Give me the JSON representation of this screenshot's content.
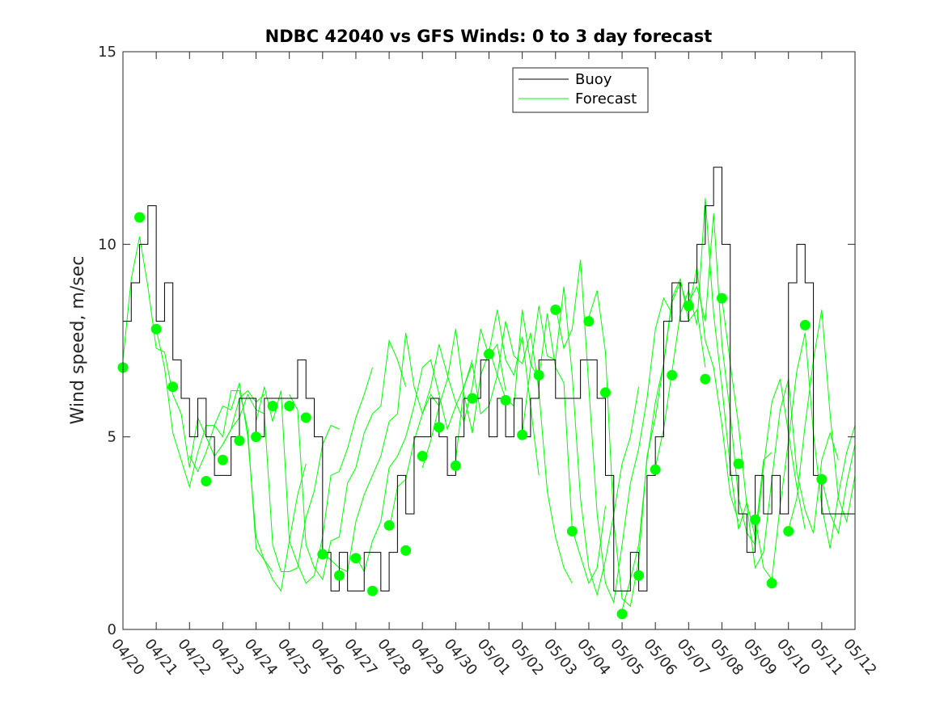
{
  "chart_data": {
    "type": "line",
    "title": "NDBC 42040 vs GFS Winds: 0 to 3 day forecast",
    "xlabel": "",
    "ylabel": "Wind speed, m/sec",
    "xlim": [
      "04/20",
      "05/12"
    ],
    "ylim": [
      0,
      15
    ],
    "x_ticks": [
      "04/20",
      "04/21",
      "04/22",
      "04/23",
      "04/24",
      "04/25",
      "04/26",
      "04/27",
      "04/28",
      "04/29",
      "04/30",
      "05/01",
      "05/02",
      "05/03",
      "05/04",
      "05/05",
      "05/06",
      "05/07",
      "05/08",
      "05/09",
      "05/10",
      "05/11",
      "05/12"
    ],
    "y_ticks": [
      0,
      5,
      10,
      15
    ],
    "legend": {
      "position": "top-right",
      "entries": [
        "Buoy",
        "Forecast"
      ]
    },
    "colors": {
      "buoy": "#000000",
      "forecast": "#00ff00",
      "axes": "#262626"
    },
    "grid": false,
    "series": [
      {
        "name": "Buoy",
        "style": "stairs",
        "x_days": [
          0,
          0.25,
          0.5,
          0.75,
          1,
          1.25,
          1.5,
          1.75,
          2,
          2.25,
          2.5,
          2.75,
          3,
          3.25,
          3.5,
          3.75,
          4,
          4.25,
          4.5,
          4.75,
          5,
          5.25,
          5.5,
          5.75,
          6,
          6.25,
          6.5,
          6.75,
          7,
          7.25,
          7.5,
          7.75,
          8,
          8.25,
          8.5,
          8.75,
          9,
          9.25,
          9.5,
          9.75,
          10,
          10.25,
          10.5,
          10.75,
          11,
          11.25,
          11.5,
          11.75,
          12,
          12.25,
          12.5,
          12.75,
          13,
          13.25,
          13.5,
          13.75,
          14,
          14.25,
          14.5,
          14.75,
          15,
          15.25,
          15.5,
          15.75,
          16,
          16.25,
          16.5,
          16.75,
          17,
          17.25,
          17.5,
          17.75,
          18,
          18.25,
          18.5,
          18.75,
          19,
          19.25,
          19.5,
          19.75,
          20,
          20.25,
          20.5,
          20.75,
          21,
          21.25,
          21.5,
          21.75,
          22
        ],
        "values": [
          8,
          9,
          10,
          11,
          8,
          9,
          7,
          6,
          5,
          6,
          5,
          4,
          4,
          5,
          6,
          6,
          5,
          6,
          6,
          6,
          6,
          7,
          6,
          5,
          2,
          1,
          2,
          1,
          1,
          2,
          2,
          1,
          2,
          4,
          3,
          5,
          5,
          6,
          5,
          4,
          5,
          6,
          6,
          7,
          5,
          6,
          5,
          6,
          5,
          6,
          7,
          7,
          6,
          6,
          6,
          7,
          7,
          6,
          4,
          1,
          1,
          2,
          1,
          4,
          5,
          8,
          9,
          8,
          9,
          10,
          11,
          12,
          10,
          4,
          3,
          2,
          4,
          3,
          4,
          3,
          9,
          10,
          9,
          4,
          3,
          3,
          3,
          3,
          4
        ]
      },
      {
        "name": "Forecast",
        "style": "lines",
        "runs": [
          {
            "start_day": 0,
            "values": [
              7.0,
              9.1,
              10.2,
              8.9,
              7.3,
              7.2,
              6.1,
              5.6,
              4.2,
              5.5,
              5.0,
              4.5,
              4.8,
              5.2,
              6.0,
              6.2,
              5.9,
              6.1
            ]
          },
          {
            "start_day": 1,
            "values": [
              7.8,
              6.8,
              5.1,
              4.4,
              3.7,
              4.6,
              5.3,
              5.3,
              5.8,
              5.7,
              6.4,
              5.0,
              2.4,
              1.8,
              1.5
            ]
          },
          {
            "start_day": 2,
            "values": [
              4.5,
              4.1,
              4.6,
              5.3,
              5.0,
              6.2,
              6.2,
              5.2,
              2.1,
              1.8,
              1.3,
              1.0,
              2.3,
              3.5,
              4.3
            ]
          },
          {
            "start_day": 3,
            "values": [
              4.8,
              5.2,
              5.5,
              6.1,
              5.7,
              5.6,
              2.2,
              1.5,
              1.5,
              1.6,
              2.9,
              3.6,
              4.8,
              5.3,
              5.2
            ]
          },
          {
            "start_day": 4,
            "values": [
              5.4,
              6.3,
              5.4,
              6.2,
              2.3,
              1.7,
              1.2,
              1.4,
              2.4,
              4.0,
              4.1,
              4.7,
              5.5,
              6.1,
              6.8
            ]
          },
          {
            "start_day": 5,
            "values": [
              6.1,
              5.7,
              2.2,
              1.6,
              1.3,
              2.3,
              2.4,
              3.8,
              4.2,
              5.1,
              5.6,
              5.8,
              7.5,
              7.0,
              6.3
            ]
          },
          {
            "start_day": 6,
            "values": [
              2.0,
              1.8,
              1.6,
              1.5,
              2.8,
              3.5,
              4.0,
              4.5,
              5.4,
              5.6,
              7.7,
              6.3,
              5.6,
              6.1,
              5.8
            ]
          },
          {
            "start_day": 7,
            "values": [
              1.9,
              1.5,
              2.3,
              2.8,
              4.2,
              4.5,
              5.0,
              5.8,
              6.8,
              7.0,
              6.1,
              5.2,
              5.8,
              6.3,
              7.0
            ]
          },
          {
            "start_day": 8,
            "values": [
              2.6,
              3.7,
              3.9,
              4.9,
              5.6,
              6.3,
              7.4,
              6.6,
              5.9,
              5.4,
              6.3,
              7.8,
              7.1,
              7.4,
              6.2
            ]
          },
          {
            "start_day": 9,
            "values": [
              4.2,
              4.9,
              5.8,
              6.5,
              7.8,
              6.1,
              5.1,
              6.6,
              7.2,
              8.3,
              7.0,
              6.6,
              7.6,
              5.8,
              4.0
            ]
          },
          {
            "start_day": 10,
            "values": [
              4.4,
              6.3,
              6.9,
              5.6,
              5.8,
              6.6,
              8.0,
              7.1,
              6.9,
              7.7,
              6.2,
              3.6,
              2.4,
              1.6,
              1.2
            ]
          },
          {
            "start_day": 11,
            "values": [
              7.3,
              6.6,
              6.0,
              5.8,
              8.3,
              6.9,
              6.5,
              8.2,
              6.8,
              6.4,
              2.6,
              1.9,
              1.2,
              1.6,
              3.2
            ]
          },
          {
            "start_day": 12,
            "values": [
              5.1,
              6.8,
              8.4,
              7.1,
              7.0,
              8.9,
              6.6,
              3.4,
              1.6,
              0.9,
              1.8,
              3.0,
              4.3,
              5.0,
              6.3
            ]
          },
          {
            "start_day": 13,
            "values": [
              8.4,
              7.3,
              7.8,
              9.6,
              6.3,
              3.0,
              1.2,
              0.7,
              2.2,
              3.8,
              4.7,
              6.0,
              7.8,
              8.6,
              8.2
            ]
          },
          {
            "start_day": 14,
            "values": [
              8.1,
              8.8,
              7.2,
              2.8,
              0.8,
              0.6,
              1.8,
              4.5,
              5.5,
              6.9,
              8.6,
              9.1,
              8.0,
              8.3,
              6.8
            ]
          },
          {
            "start_day": 15,
            "values": [
              0.5,
              1.3,
              2.2,
              4.4,
              5.9,
              6.9,
              8.5,
              9.0,
              8.3,
              9.4,
              7.5,
              6.8,
              5.3,
              3.5,
              2.8
            ]
          },
          {
            "start_day": 16,
            "values": [
              4.2,
              5.2,
              6.7,
              8.2,
              8.8,
              7.9,
              11.2,
              8.2,
              6.3,
              4.2,
              2.6,
              3.3,
              2.4,
              4.4,
              4.6
            ]
          },
          {
            "start_day": 17,
            "values": [
              8.5,
              8.9,
              8.0,
              10.8,
              7.4,
              5.6,
              3.4,
              2.5,
              2.2,
              4.2,
              5.9,
              6.5,
              5.1,
              3.7,
              2.6
            ]
          },
          {
            "start_day": 18,
            "values": [
              8.6,
              6.9,
              5.3,
              3.2,
              1.6,
              2.0,
              3.9,
              5.7,
              6.5,
              4.1,
              3.1,
              2.5,
              4.4,
              5.1,
              4.4
            ]
          },
          {
            "start_day": 19,
            "values": [
              2.9,
              1.6,
              1.3,
              3.2,
              4.9,
              6.7,
              7.7,
              5.1,
              3.2,
              2.1,
              3.5,
              4.6,
              5.3,
              4.4,
              3.8
            ]
          },
          {
            "start_day": 20,
            "values": [
              2.6,
              3.4,
              5.3,
              7.0,
              8.3,
              5.6,
              3.4,
              2.8,
              4.0,
              4.7,
              5.2
            ]
          },
          {
            "start_day": 21,
            "values": [
              3.9,
              3.0,
              2.5,
              3.8,
              4.8,
              5.0,
              4.5,
              5.6
            ]
          }
        ]
      },
      {
        "name": "Forecast analysis markers",
        "style": "markers",
        "x_days": [
          0,
          0.5,
          1,
          1.5,
          2.5,
          3,
          3.5,
          4,
          4.5,
          5,
          5.5,
          6,
          6.5,
          7,
          7.5,
          8,
          8.5,
          9,
          9.5,
          10,
          10.5,
          11,
          11.5,
          12,
          12.5,
          13,
          13.5,
          14,
          14.5,
          15,
          15.5,
          16,
          16.5,
          17,
          17.5,
          18,
          18.5,
          19,
          19.5,
          20,
          20.5,
          21
        ],
        "values": [
          6.8,
          10.7,
          7.8,
          6.3,
          3.85,
          4.4,
          4.9,
          5.0,
          5.8,
          5.8,
          5.5,
          1.95,
          1.4,
          1.85,
          1.0,
          2.7,
          2.05,
          4.5,
          5.25,
          4.25,
          6.0,
          7.15,
          5.95,
          5.05,
          6.6,
          8.3,
          2.55,
          8.0,
          6.15,
          0.4,
          1.4,
          4.15,
          6.6,
          8.4,
          6.5,
          8.6,
          4.3,
          2.85,
          1.2,
          2.55,
          7.9,
          3.9
        ]
      }
    ]
  }
}
